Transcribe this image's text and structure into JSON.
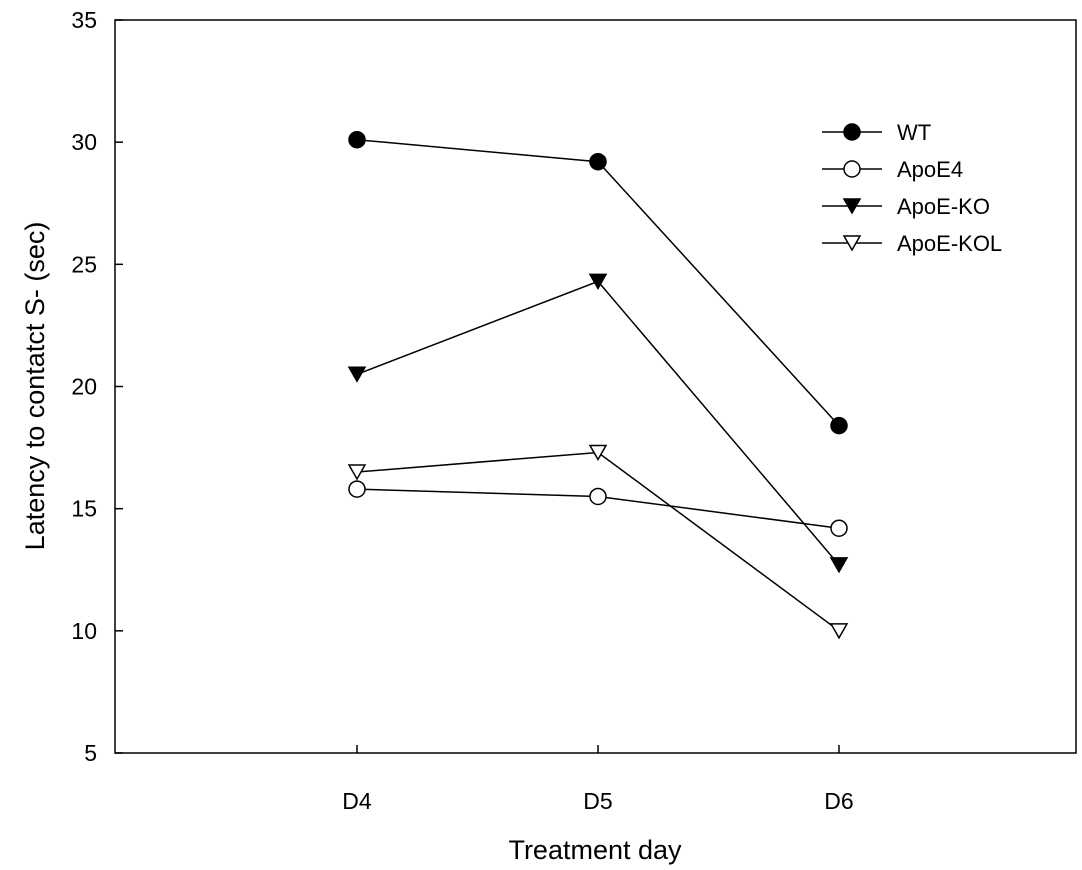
{
  "chart_data": {
    "type": "line",
    "title": "",
    "xlabel": "Treatment day",
    "ylabel": "Latency to contatct S- (sec)",
    "categories": [
      "D4",
      "D5",
      "D6"
    ],
    "ylim": [
      5,
      35
    ],
    "yticks": [
      5,
      10,
      15,
      20,
      25,
      30,
      35
    ],
    "grid": false,
    "legend_position": "top-right",
    "series": [
      {
        "name": "WT",
        "marker": "circle-filled",
        "values": [
          30.1,
          29.2,
          18.4
        ]
      },
      {
        "name": "ApoE4",
        "marker": "circle-open",
        "values": [
          15.8,
          15.5,
          14.2
        ]
      },
      {
        "name": "ApoE-KO",
        "marker": "triangle-down-filled",
        "values": [
          20.5,
          24.3,
          12.7
        ]
      },
      {
        "name": "ApoE-KOL",
        "marker": "triangle-down-open",
        "values": [
          16.5,
          17.3,
          10.0
        ]
      }
    ]
  }
}
